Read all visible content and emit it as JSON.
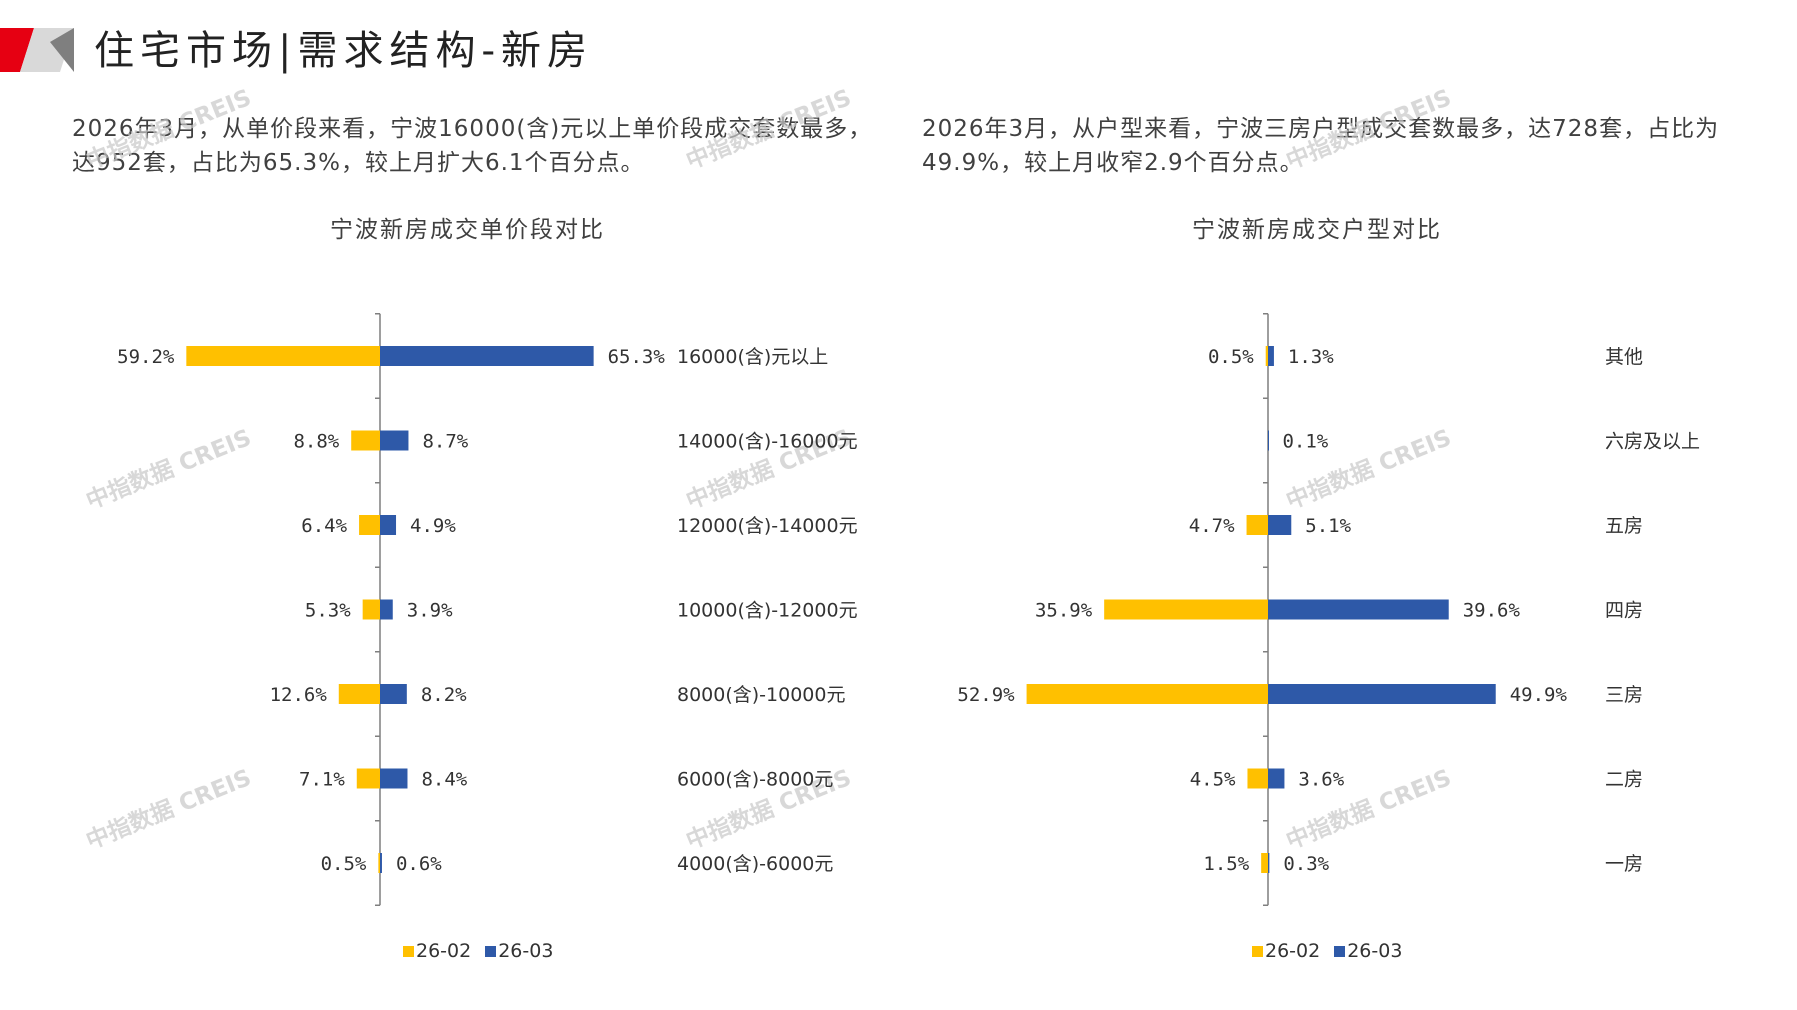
{
  "header": {
    "title": "住宅市场|需求结构-新房"
  },
  "text": {
    "left_desc": "2026年3月，从单价段来看，宁波16000(含)元以上单价段成交套数最多，达952套，占比为65.3%，较上月扩大6.1个百分点。",
    "right_desc": "2026年3月，从户型来看，宁波三房户型成交套数最多，达728套，占比为49.9%，较上月收窄2.9个百分点。",
    "watermark": "中指数据 CREIS"
  },
  "colors": {
    "series_prev": "#FFC000",
    "series_curr": "#2E59A8",
    "axis": "#7f7f7f",
    "brand_red": "#E60012",
    "brand_gray": "#bfbfbf"
  },
  "chart_data": [
    {
      "type": "bar",
      "orientation": "horizontal-butterfly",
      "title": "宁波新房成交单价段对比",
      "categories": [
        "16000(含)元以上",
        "14000(含)-16000元",
        "12000(含)-14000元",
        "10000(含)-12000元",
        "8000(含)-10000元",
        "6000(含)-8000元",
        "4000(含)-6000元"
      ],
      "series": [
        {
          "name": "26-02",
          "values": [
            59.2,
            8.8,
            6.4,
            5.3,
            12.6,
            7.1,
            0.5
          ],
          "labels": [
            "59.2%",
            "8.8%",
            "6.4%",
            "5.3%",
            "12.6%",
            "7.1%",
            "0.5%"
          ]
        },
        {
          "name": "26-03",
          "values": [
            65.3,
            8.7,
            4.9,
            3.9,
            8.2,
            8.4,
            0.6
          ],
          "labels": [
            "65.3%",
            "8.7%",
            "4.9%",
            "3.9%",
            "8.2%",
            "8.4%",
            "0.6%"
          ]
        }
      ],
      "xlim": [
        -70,
        70
      ],
      "legend": [
        "26-02",
        "26-03"
      ],
      "legend_position": "bottom"
    },
    {
      "type": "bar",
      "orientation": "horizontal-butterfly",
      "title": "宁波新房成交户型对比",
      "categories": [
        "其他",
        "六房及以上",
        "五房",
        "四房",
        "三房",
        "二房",
        "一房"
      ],
      "series": [
        {
          "name": "26-02",
          "values": [
            0.5,
            0.0,
            4.7,
            35.9,
            52.9,
            4.5,
            1.5
          ],
          "labels": [
            "0.5%",
            "",
            "4.7%",
            "35.9%",
            "52.9%",
            "4.5%",
            "1.5%"
          ]
        },
        {
          "name": "26-03",
          "values": [
            1.3,
            0.1,
            5.1,
            39.6,
            49.9,
            3.6,
            0.3
          ],
          "labels": [
            "1.3%",
            "0.1%",
            "5.1%",
            "39.6%",
            "49.9%",
            "3.6%",
            "0.3%"
          ]
        }
      ],
      "xlim": [
        -55,
        55
      ],
      "legend": [
        "26-02",
        "26-03"
      ],
      "legend_position": "bottom"
    }
  ]
}
